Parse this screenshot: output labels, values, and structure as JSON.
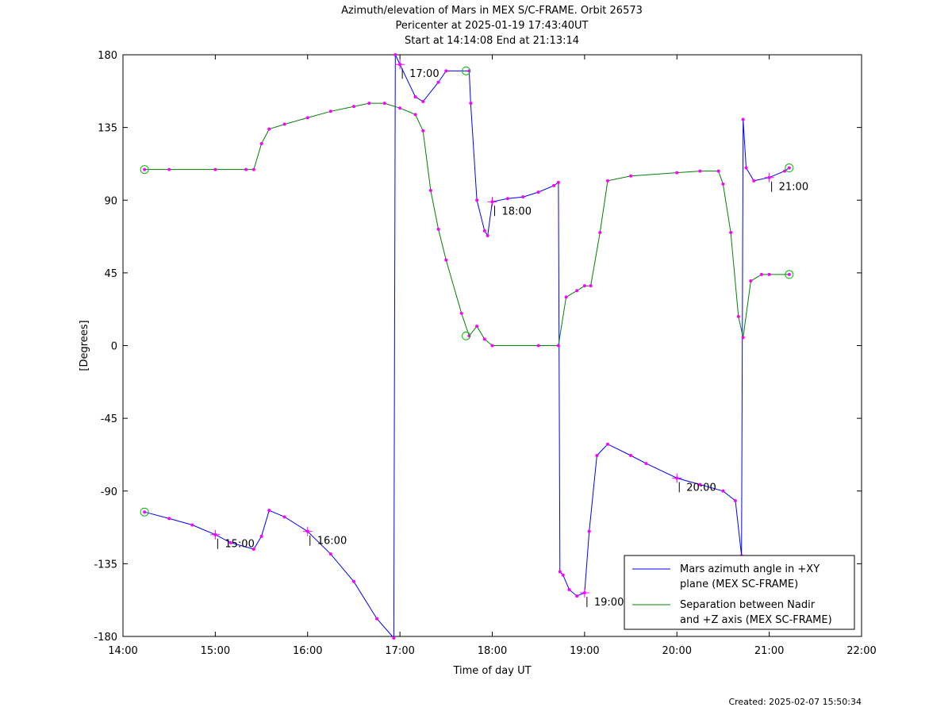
{
  "chart_data": {
    "type": "line",
    "title": [
      "Azimuth/elevation of Mars in MEX S/C-FRAME.  Orbit 26573",
      "Pericenter at 2025-01-19 17:43:40UT",
      "Start at 14:14:08 End at 21:13:14"
    ],
    "xlabel": "Time of day UT",
    "ylabel": "[Degrees]",
    "xlim": [
      "14:00",
      "22:00"
    ],
    "ylim": [
      -180,
      180
    ],
    "x_ticks": [
      "14:00",
      "15:00",
      "16:00",
      "17:00",
      "18:00",
      "19:00",
      "20:00",
      "21:00",
      "22:00"
    ],
    "y_ticks": [
      "180",
      "135",
      "90",
      "45",
      "0",
      "-45",
      "-90",
      "-135",
      "-180"
    ],
    "y_tick_values": [
      180,
      135,
      90,
      45,
      0,
      -45,
      -90,
      -135,
      -180
    ],
    "legend": {
      "position": "bottom-right"
    },
    "series": [
      {
        "name": "Mars azimuth angle in +XY plane (MEX SC-FRAME)",
        "legend_lines": [
          "Mars azimuth angle in +XY",
          "plane (MEX SC-FRAME)"
        ],
        "color": "#0000ff",
        "points": [
          [
            "14:14",
            -103
          ],
          [
            "14:30",
            -107
          ],
          [
            "14:45",
            -111
          ],
          [
            "15:00",
            -117
          ],
          [
            "15:10",
            -122
          ],
          [
            "15:25",
            -126
          ],
          [
            "15:30",
            -118
          ],
          [
            "15:35",
            -102
          ],
          [
            "15:45",
            -106
          ],
          [
            "16:00",
            -115
          ],
          [
            "16:15",
            -129
          ],
          [
            "16:30",
            -146
          ],
          [
            "16:45",
            -169
          ],
          [
            "16:56",
            -181
          ],
          [
            "16:57",
            180
          ],
          [
            "17:00",
            174
          ],
          [
            "17:10",
            154
          ],
          [
            "17:15",
            151
          ],
          [
            "17:25",
            163
          ],
          [
            "17:30",
            170
          ],
          [
            "17:45",
            170
          ],
          [
            "17:46",
            150
          ],
          [
            "17:50",
            90
          ],
          [
            "17:55",
            71
          ],
          [
            "17:57",
            68
          ],
          [
            "18:00",
            89
          ],
          [
            "18:10",
            91
          ],
          [
            "18:20",
            92
          ],
          [
            "18:30",
            95
          ],
          [
            "18:40",
            99
          ],
          [
            "18:43",
            101
          ],
          [
            "18:44",
            -140
          ],
          [
            "18:46",
            -142
          ],
          [
            "18:50",
            -151
          ],
          [
            "18:55",
            -155
          ],
          [
            "19:00",
            -153
          ],
          [
            "19:03",
            -115
          ],
          [
            "19:08",
            -68
          ],
          [
            "19:15",
            -61
          ],
          [
            "19:30",
            -68
          ],
          [
            "19:40",
            -73
          ],
          [
            "20:00",
            -82
          ],
          [
            "20:15",
            -86
          ],
          [
            "20:30",
            -90
          ],
          [
            "20:38",
            -96
          ],
          [
            "20:42",
            -130
          ],
          [
            "20:43",
            140
          ],
          [
            "20:45",
            110
          ],
          [
            "20:50",
            102
          ],
          [
            "21:00",
            104
          ],
          [
            "21:10",
            108
          ],
          [
            "21:13",
            110
          ]
        ]
      },
      {
        "name": "Separation between Nadir and +Z axis (MEX SC-FRAME)",
        "legend_lines": [
          "Separation between Nadir",
          "and +Z axis (MEX SC-FRAME)"
        ],
        "color": "#008000",
        "points": [
          [
            "14:14",
            109
          ],
          [
            "14:30",
            109
          ],
          [
            "15:00",
            109
          ],
          [
            "15:20",
            109
          ],
          [
            "15:25",
            109
          ],
          [
            "15:30",
            125
          ],
          [
            "15:35",
            134
          ],
          [
            "15:45",
            137
          ],
          [
            "16:00",
            141
          ],
          [
            "16:15",
            145
          ],
          [
            "16:30",
            148
          ],
          [
            "16:40",
            150
          ],
          [
            "16:50",
            150
          ],
          [
            "17:00",
            147
          ],
          [
            "17:10",
            143
          ],
          [
            "17:15",
            133
          ],
          [
            "17:20",
            96
          ],
          [
            "17:25",
            72
          ],
          [
            "17:30",
            53
          ],
          [
            "17:40",
            20
          ],
          [
            "17:45",
            6
          ],
          [
            "17:50",
            12
          ],
          [
            "17:55",
            4
          ],
          [
            "18:00",
            0
          ],
          [
            "18:30",
            0
          ],
          [
            "18:43",
            0
          ],
          [
            "18:48",
            30
          ],
          [
            "18:55",
            34
          ],
          [
            "19:00",
            37
          ],
          [
            "19:04",
            37
          ],
          [
            "19:10",
            70
          ],
          [
            "19:15",
            102
          ],
          [
            "19:30",
            105
          ],
          [
            "20:00",
            107
          ],
          [
            "20:15",
            108
          ],
          [
            "20:27",
            108
          ],
          [
            "20:30",
            100
          ],
          [
            "20:35",
            70
          ],
          [
            "20:40",
            18
          ],
          [
            "20:43",
            5
          ],
          [
            "20:48",
            40
          ],
          [
            "20:55",
            44
          ],
          [
            "21:00",
            44
          ],
          [
            "21:13",
            44
          ]
        ]
      }
    ],
    "time_markers": [
      {
        "label": "15:00",
        "time": "15:00",
        "y": -117
      },
      {
        "label": "16:00",
        "time": "16:00",
        "y": -115
      },
      {
        "label": "17:00",
        "time": "17:00",
        "y": 174
      },
      {
        "label": "18:00",
        "time": "18:00",
        "y": 89
      },
      {
        "label": "19:00",
        "time": "19:00",
        "y": -153
      },
      {
        "label": "20:00",
        "time": "20:00",
        "y": -82
      },
      {
        "label": "21:00",
        "time": "21:00",
        "y": 104
      }
    ],
    "endpoint_markers": [
      {
        "series": 0,
        "time": "14:14",
        "y": -103
      },
      {
        "series": 0,
        "time": "21:13",
        "y": 110
      },
      {
        "series": 1,
        "time": "14:14",
        "y": 109
      },
      {
        "series": 1,
        "time": "21:13",
        "y": 44
      },
      {
        "series": 0,
        "time": "17:43",
        "y": 170
      },
      {
        "series": 1,
        "time": "17:43",
        "y": 6
      }
    ],
    "marker_color": "#ff00ff",
    "endpoint_color": "#00c000"
  },
  "footer": "Created: 2025-02-07 15:50:34"
}
